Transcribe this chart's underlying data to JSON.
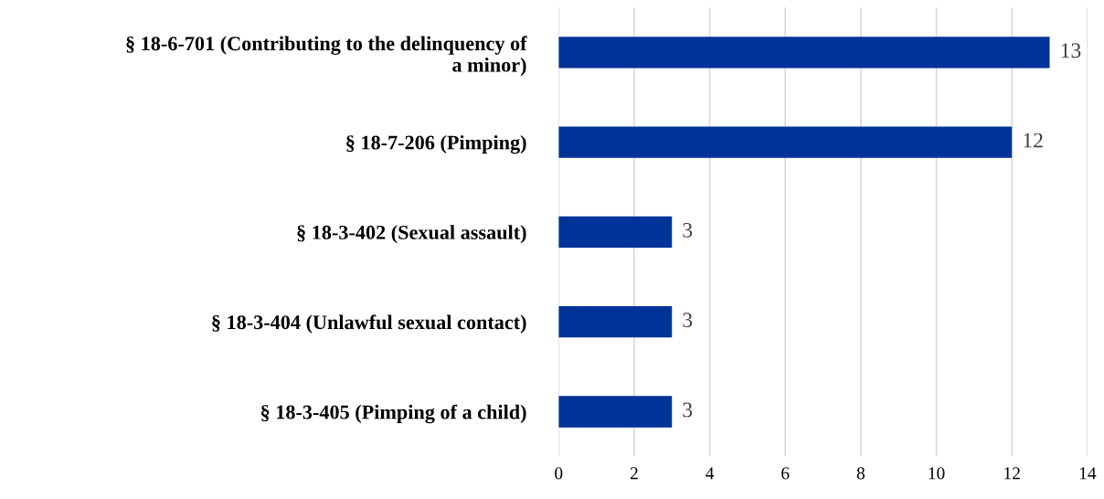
{
  "chart_data": {
    "type": "bar",
    "orientation": "horizontal",
    "categories": [
      "§ 18-6-701 (Contributing to the delinquency of\na minor)",
      "§ 18-7-206 (Pimping)",
      "§ 18-3-402 (Sexual assault)",
      "§ 18-3-404 (Unlawful sexual contact)",
      "§ 18-3-405 (Pimping of a child)"
    ],
    "values": [
      13,
      12,
      3,
      3,
      3
    ],
    "color": "#003399",
    "xlim": [
      0,
      14
    ],
    "xticks": [
      0,
      2,
      4,
      6,
      8,
      10,
      12,
      14
    ],
    "grid": "x",
    "data_labels": true
  }
}
